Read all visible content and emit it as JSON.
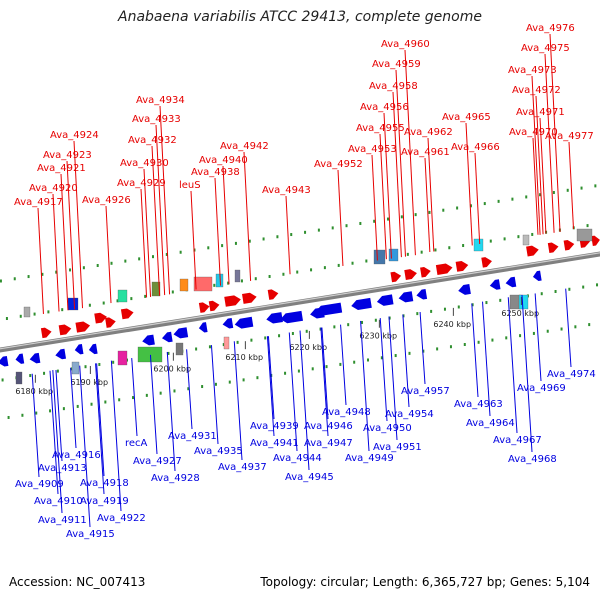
{
  "header": {
    "title": "Anabaena variabilis ATCC 29413, complete genome"
  },
  "footer": {
    "accession": "Accession: NC_007413",
    "summary": "Topology: circular; Length: 6,365,727 bp; Genes: 5,104"
  },
  "colors": {
    "forward": "#e60000",
    "reverse": "#0000e0",
    "backbone": "#808080",
    "tick_green": "#2f8f2f"
  },
  "ticks": [
    "6180 kbp",
    "6190 kbp",
    "6200 kbp",
    "6210 kbp",
    "6220 kbp",
    "6230 kbp",
    "6240 kbp",
    "6250 kbp"
  ],
  "top_labels": [
    "Ava_4976",
    "Ava_4960",
    "Ava_4975",
    "Ava_4959",
    "Ava_4973",
    "Ava_4958",
    "Ava_4972",
    "Ava_4934",
    "Ava_4956",
    "Ava_4971",
    "Ava_4965",
    "Ava_4933",
    "Ava_4955",
    "Ava_4962",
    "Ava_4970",
    "Ava_4924",
    "Ava_4932",
    "Ava_4977",
    "Ava_4953",
    "Ava_4961",
    "Ava_4966",
    "Ava_4942",
    "Ava_4923",
    "Ava_4930",
    "Ava_4940",
    "Ava_4952",
    "Ava_4921",
    "Ava_4938",
    "Ava_4929",
    "leuS",
    "Ava_4920",
    "Ava_4943",
    "Ava_4926",
    "Ava_4917"
  ],
  "bottom_labels": [
    "Ava_4974",
    "Ava_4969",
    "Ava_4957",
    "Ava_4963",
    "Ava_4954",
    "Ava_4948",
    "Ava_4964",
    "Ava_4950",
    "Ava_4946",
    "Ava_4939",
    "Ava_4931",
    "Ava_4967",
    "recA",
    "Ava_4941",
    "Ava_4947",
    "Ava_4951",
    "Ava_4935",
    "Ava_4916",
    "Ava_4944",
    "Ava_4927",
    "Ava_4949",
    "Ava_4968",
    "Ava_4913",
    "Ava_4937",
    "Ava_4928",
    "Ava_4945",
    "Ava_4909",
    "Ava_4918",
    "Ava_4910",
    "Ava_4919",
    "Ava_4911",
    "Ava_4922",
    "Ava_4915"
  ]
}
